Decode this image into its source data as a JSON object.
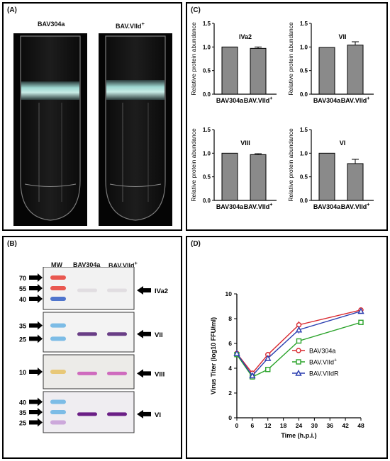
{
  "panelA": {
    "label": "(A)",
    "tubes": [
      {
        "title": "BAV304a"
      },
      {
        "title": "BAV.VIId",
        "title_sup": "+"
      }
    ]
  },
  "panelB": {
    "label": "(B)",
    "mw_label": "MW",
    "lanes": [
      {
        "title": "BAV304a"
      },
      {
        "title": "BAV.VIId",
        "title_sup": "+"
      }
    ],
    "blots": [
      {
        "name": "IVa2",
        "markers": [
          "70",
          "55",
          "40"
        ],
        "marker_colors": [
          "#e8473e",
          "#e8473e",
          "#3d67c9"
        ],
        "bg": "#f2f2f2",
        "band_color": "#c9bec8",
        "intensity": 0.4
      },
      {
        "name": "VII",
        "markers": [
          "35",
          "25"
        ],
        "marker_colors": [
          "#6fb6e4",
          "#6fb6e4"
        ],
        "bg": "#f3f3f3",
        "band_color": "#5a2a7a",
        "intensity": 0.9
      },
      {
        "name": "VIII",
        "markers": [
          "10"
        ],
        "marker_colors": [
          "#e8c46a"
        ],
        "bg": "#ecebe8",
        "band_color": "#c84bb3",
        "intensity": 0.8
      },
      {
        "name": "VI",
        "markers": [
          "40",
          "35",
          "25"
        ],
        "marker_colors": [
          "#6fb6e4",
          "#6fb6e4",
          "#c8a0d8"
        ],
        "bg": "#efedf1",
        "band_color": "#6b1f86",
        "intensity": 1.0
      }
    ]
  },
  "panelC": {
    "label": "(C)",
    "chart_data": [
      {
        "type": "bar",
        "title": "IVa2",
        "ylabel": "Relative protein abundance",
        "categories": [
          "BAV304a",
          "BAV.VIId+"
        ],
        "values": [
          1.0,
          0.97
        ],
        "errors": [
          0.0,
          0.03
        ],
        "ylim": [
          0,
          1.5
        ],
        "yticks": [
          "0.0",
          "0.5",
          "1.0",
          "1.5"
        ]
      },
      {
        "type": "bar",
        "title": "VII",
        "ylabel": "Relative protein abundance",
        "categories": [
          "BAV304a",
          "BAV.VIId+"
        ],
        "values": [
          0.99,
          1.04
        ],
        "errors": [
          0.0,
          0.07
        ],
        "ylim": [
          0,
          1.5
        ],
        "yticks": [
          "0.0",
          "0.5",
          "1.0",
          "1.5"
        ]
      },
      {
        "type": "bar",
        "title": "VIII",
        "ylabel": "Relative protein abundance",
        "categories": [
          "BAV304a",
          "BAV.VIId+"
        ],
        "values": [
          1.0,
          0.97
        ],
        "errors": [
          0.0,
          0.02
        ],
        "ylim": [
          0,
          1.5
        ],
        "yticks": [
          "0.0",
          "0.5",
          "1.0",
          "1.5"
        ]
      },
      {
        "type": "bar",
        "title": "VI",
        "ylabel": "Relative protein abundance",
        "categories": [
          "BAV304a",
          "BAV.VIId+"
        ],
        "values": [
          1.0,
          0.78
        ],
        "errors": [
          0.0,
          0.09
        ],
        "ylim": [
          0,
          1.5
        ],
        "yticks": [
          "0.0",
          "0.5",
          "1.0",
          "1.5"
        ]
      }
    ]
  },
  "panelD": {
    "label": "(D)",
    "chart_data": {
      "type": "line",
      "xlabel": "Time (h.p.i.)",
      "ylabel": "Virus Titer (log10 FFU/ml)",
      "xlim": [
        0,
        48
      ],
      "ylim": [
        0,
        10
      ],
      "xticks": [
        0,
        6,
        12,
        18,
        24,
        30,
        36,
        42,
        48
      ],
      "yticks": [
        0,
        2,
        4,
        6,
        8,
        10
      ],
      "x": [
        0,
        6,
        12,
        24,
        48
      ],
      "legend_position": "right",
      "series": [
        {
          "name": "BAV304a",
          "values": [
            5.2,
            3.6,
            5.1,
            7.5,
            8.7
          ],
          "errors": [
            0.2,
            0.2,
            0.2,
            0.3,
            0.2
          ],
          "color": "#d9282f",
          "marker": "circle"
        },
        {
          "name": "BAV.VIId+",
          "values": [
            5.1,
            3.3,
            3.9,
            6.2,
            7.7
          ],
          "errors": [
            0.2,
            0.2,
            0.1,
            0.2,
            0.1
          ],
          "color": "#2aa32a",
          "marker": "square"
        },
        {
          "name": "BAV.VIIdR",
          "values": [
            5.2,
            3.4,
            4.8,
            7.1,
            8.6
          ],
          "errors": [
            0.2,
            0.2,
            0.2,
            0.3,
            0.2
          ],
          "color": "#2c3fb0",
          "marker": "triangle"
        }
      ]
    }
  }
}
